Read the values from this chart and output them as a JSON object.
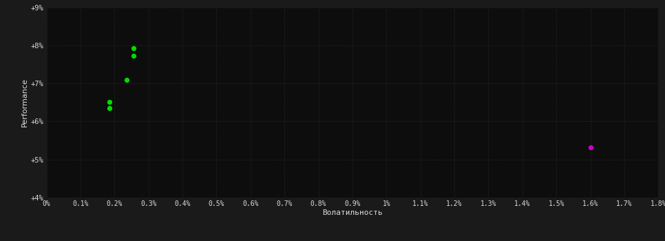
{
  "background_color": "#1a1a1a",
  "plot_bg_color": "#0d0d0d",
  "grid_color": "#2d2d2d",
  "text_color": "#dddddd",
  "xlabel": "Волатильность",
  "ylabel": "Performance",
  "xlim": [
    0.0,
    0.018
  ],
  "ylim": [
    0.04,
    0.09
  ],
  "xticks": [
    0.0,
    0.001,
    0.002,
    0.003,
    0.004,
    0.005,
    0.006,
    0.007,
    0.008,
    0.009,
    0.01,
    0.011,
    0.012,
    0.013,
    0.014,
    0.015,
    0.016,
    0.017,
    0.018
  ],
  "xtick_labels": [
    "0%",
    "0.1%",
    "0.2%",
    "0.3%",
    "0.4%",
    "0.5%",
    "0.6%",
    "0.7%",
    "0.8%",
    "0.9%",
    "1%",
    "1.1%",
    "1.2%",
    "1.3%",
    "1.4%",
    "1.5%",
    "1.6%",
    "1.7%",
    "1.8%"
  ],
  "yticks": [
    0.04,
    0.05,
    0.06,
    0.07,
    0.08,
    0.09
  ],
  "ytick_labels": [
    "+4%",
    "+5%",
    "+6%",
    "+7%",
    "+8%",
    "+9%"
  ],
  "green_points": [
    [
      0.00255,
      0.0793
    ],
    [
      0.00255,
      0.0773
    ],
    [
      0.00235,
      0.071
    ],
    [
      0.00185,
      0.0652
    ],
    [
      0.00185,
      0.0635
    ]
  ],
  "magenta_points": [
    [
      0.016,
      0.0532
    ]
  ],
  "point_size": 18,
  "green_color": "#00dd00",
  "magenta_color": "#cc00cc"
}
